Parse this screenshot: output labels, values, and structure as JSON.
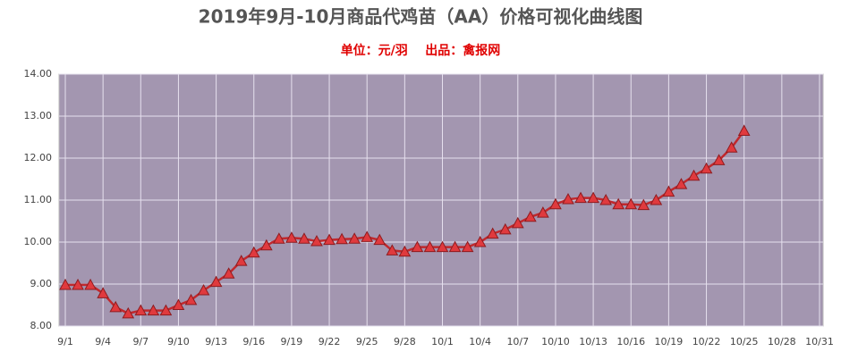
{
  "chart_data": {
    "type": "line",
    "title": "2019年9月-10月商品代鸡苗（AA）价格可视化曲线图",
    "subtitle": "单位：元/羽    出品：禽报网",
    "categories": [
      "9/1",
      null,
      null,
      "9/4",
      null,
      null,
      "9/7",
      null,
      null,
      "9/10",
      null,
      null,
      "9/13",
      null,
      null,
      "9/16",
      null,
      null,
      "9/19",
      null,
      null,
      "9/22",
      null,
      null,
      "9/25",
      null,
      null,
      "9/28",
      null,
      null,
      "10/1",
      null,
      null,
      "10/4",
      null,
      null,
      "10/7",
      null,
      null,
      "10/10",
      null,
      null,
      "10/13",
      null,
      null,
      "10/16",
      null,
      null,
      "10/19",
      null,
      null,
      "10/22",
      null,
      null,
      "10/25",
      null,
      null,
      "10/28",
      null,
      null,
      "10/31"
    ],
    "series": [
      {
        "color": "#c0282d",
        "marker_color": "#e03a3e",
        "values": [
          8.98,
          8.98,
          8.98,
          8.78,
          8.45,
          8.3,
          8.37,
          8.37,
          8.37,
          8.5,
          8.62,
          8.85,
          9.05,
          9.25,
          9.55,
          9.75,
          9.92,
          10.08,
          10.1,
          10.08,
          10.02,
          10.05,
          10.07,
          10.08,
          10.12,
          10.05,
          9.8,
          9.77,
          9.88,
          9.88,
          9.88,
          9.88,
          9.88,
          10.0,
          10.2,
          10.3,
          10.45,
          10.6,
          10.7,
          10.9,
          11.02,
          11.05,
          11.05,
          11.0,
          10.9,
          10.9,
          10.88,
          11.0,
          11.2,
          11.38,
          11.58,
          11.75,
          11.95,
          12.25,
          12.65,
          null,
          null,
          null,
          null,
          null,
          null
        ]
      }
    ],
    "ylim": [
      8,
      14
    ],
    "yticks": [
      {
        "value": 8,
        "label": "8.00"
      },
      {
        "value": 9,
        "label": "9.00"
      },
      {
        "value": 10,
        "label": "10.00"
      },
      {
        "value": 11,
        "label": "11.00"
      },
      {
        "value": 12,
        "label": "12.00"
      },
      {
        "value": 13,
        "label": "13.00"
      },
      {
        "value": 14,
        "label": "14.00"
      }
    ],
    "grid": true,
    "plot_background": "#a396b0"
  }
}
